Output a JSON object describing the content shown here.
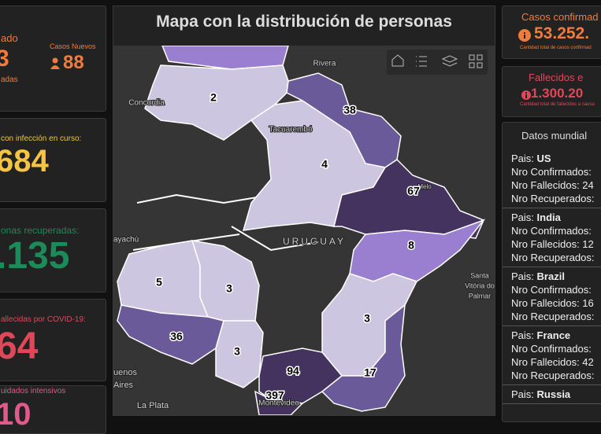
{
  "left_cards": [
    {
      "label": "ado",
      "value": "3",
      "sub": "adas",
      "extra_label": "Casos Nuevos",
      "extra_value": "88",
      "color": "#f07c3c"
    },
    {
      "label": "con infección en curso:",
      "value": "684",
      "color": "#f4c542"
    },
    {
      "label": "onas recuperadas:",
      "value": ".135",
      "color": "#1d8a5a"
    },
    {
      "label": "allecidas por COVID-19:",
      "value": "64",
      "color": "#e0485a"
    },
    {
      "label": "uidados intensivos",
      "value": "10",
      "color": "#e05a8a"
    }
  ],
  "map": {
    "title": "Mapa con la distribución de personas",
    "regions": [
      {
        "value": null,
        "color": "#9a7fd1"
      },
      {
        "value": 2,
        "color": "#cdc6e0"
      },
      {
        "value": 38,
        "color": "#6b5a9a"
      },
      {
        "value": 4,
        "color": "#cdc6e0"
      },
      {
        "value": 67,
        "color": "#44335f"
      },
      {
        "value": 8,
        "color": "#9a7fd1"
      },
      {
        "value": 5,
        "color": "#cdc6e0"
      },
      {
        "value": 3,
        "color": "#cdc6e0"
      },
      {
        "value": 36,
        "color": "#6b5a9a"
      },
      {
        "value": 3,
        "color": "#cdc6e0"
      },
      {
        "value": 3,
        "color": "#cdc6e0"
      },
      {
        "value": 94,
        "color": "#44335f"
      },
      {
        "value": 17,
        "color": "#6b5a9a"
      },
      {
        "value": 397,
        "color": "#44335f"
      }
    ],
    "places": [
      "Rivera",
      "Concordia",
      "Tacuarembó",
      "Melo",
      "URUGUAY",
      "ayachú",
      "Santa",
      "Vitória do",
      "Palmar",
      "uenos",
      "Aires",
      "La Plata",
      "Montevideo"
    ]
  },
  "right_cards": [
    {
      "label": "Casos confirmad",
      "value": "53.252.",
      "sub": "Cantidad total de casos confirmad",
      "color": "#f07c3c"
    },
    {
      "label": "Fallecidos e",
      "value": "1.300.20",
      "sub": "Cantidad total de fallecidos a causa",
      "color": "#e0485a"
    }
  ],
  "world": {
    "title": "Datos mundial",
    "countries": [
      {
        "label": "Pais:",
        "name": "US",
        "lines": [
          "Nro Confirmados:",
          "Nro Fallecidos: 24",
          "Nro Recuperados:"
        ]
      },
      {
        "label": "Pais:",
        "name": "India",
        "lines": [
          "Nro Confirmados:",
          "Nro Fallecidos: 12",
          "Nro Recuperados:"
        ]
      },
      {
        "label": "Pais:",
        "name": "Brazil",
        "lines": [
          "Nro Confirmados:",
          "Nro Fallecidos: 16",
          "Nro Recuperados:"
        ]
      },
      {
        "label": "Pais:",
        "name": "France",
        "lines": [
          "Nro Confirmados:",
          "Nro Fallecidos: 42",
          "Nro Recuperados:"
        ]
      },
      {
        "label": "Pais:",
        "name": "Russia",
        "lines": []
      }
    ]
  }
}
